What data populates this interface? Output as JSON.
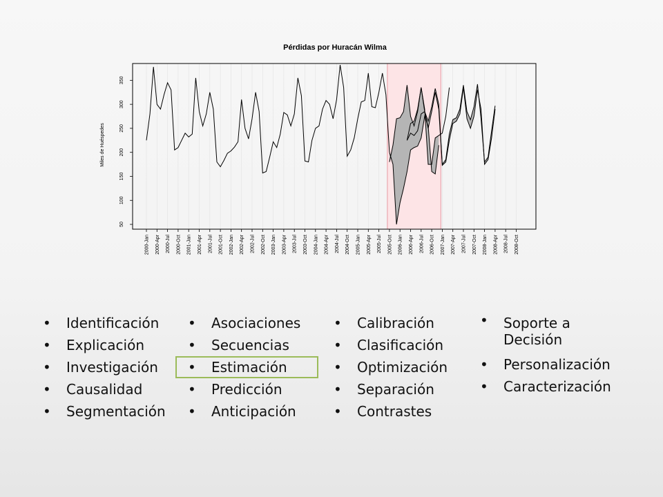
{
  "chart_data": {
    "type": "line",
    "title": "Pérdidas por Huracán Wilma",
    "ylabel": "Miles de Huéspedes",
    "xlabel": "",
    "ylim": [
      40,
      385
    ],
    "yticks": [
      50,
      100,
      150,
      200,
      250,
      300,
      350
    ],
    "xtick_labels": [
      "2000-Jan",
      "2000-Apr",
      "2000-Jul",
      "2000-Oct",
      "2001-Jan",
      "2001-Apr",
      "2001-Jul",
      "2001-Oct",
      "2002-Jan",
      "2002-Apr",
      "2002-Jul",
      "2002-Oct",
      "2003-Jan",
      "2003-Apr",
      "2003-Jul",
      "2003-Oct",
      "2004-Jan",
      "2004-Apr",
      "2004-Jul",
      "2004-Oct",
      "2005-Jan",
      "2005-Apr",
      "2005-Jul",
      "2005-Oct",
      "2006-Jan",
      "2006-Apr",
      "2006-Jul",
      "2006-Oct",
      "2007-Jan",
      "2007-Apr",
      "2007-Jul",
      "2007-Oct",
      "2008-Jan",
      "2008-Apr",
      "2008-Jul",
      "2008-Oct"
    ],
    "x_start": "2000-Jan",
    "highlight_range": [
      "2005-Oct",
      "2006-Dec"
    ],
    "highlight_color": "#fde4e6",
    "loss_fill_color": "#b5b5b5",
    "series": [
      {
        "values": [
          225,
          280,
          378,
          300,
          290,
          320,
          345,
          330,
          205,
          210,
          225,
          240,
          232,
          238,
          355,
          285,
          255,
          280,
          325,
          290,
          180,
          170,
          183,
          198,
          203,
          211,
          222,
          310,
          250,
          228,
          270,
          325,
          285,
          157,
          160,
          190,
          222,
          210,
          238,
          283,
          278,
          255,
          280,
          355,
          318,
          182,
          180,
          225,
          250,
          255,
          290,
          308,
          300,
          270,
          310,
          382,
          335,
          192,
          205,
          230,
          270,
          305,
          308,
          365,
          295,
          293,
          325,
          365,
          320,
          200
        ]
      },
      {
        "values": [
          180,
          215,
          270,
          272,
          285,
          340,
          275,
          255,
          285,
          335,
          290,
          175,
          175,
          230,
          235,
          240,
          275,
          335
        ]
      },
      {
        "values": [
          200,
          175,
          50,
          95,
          125,
          160,
          205,
          210,
          213,
          230,
          275,
          255,
          160,
          155,
          215
        ]
      },
      {
        "values": [
          225,
          260,
          265,
          290,
          335,
          285,
          265,
          295,
          333,
          300,
          175,
          185,
          238,
          268,
          272,
          290,
          340,
          285,
          268,
          295,
          342,
          270,
          180,
          190,
          245,
          297
        ]
      },
      {
        "values": [
          225,
          240,
          235,
          245,
          280,
          285,
          250,
          285,
          325,
          290,
          173,
          180,
          225,
          260,
          265,
          280,
          335,
          270,
          250,
          275,
          330,
          290,
          175,
          185,
          230,
          290
        ]
      }
    ]
  },
  "bullets": {
    "col1": [
      "Identificación",
      "Explicación",
      "Investigación",
      "Causalidad",
      "Segmentación"
    ],
    "col2": [
      "Asociaciones",
      "Secuencias",
      "Estimación",
      "Predicción",
      "Anticipación"
    ],
    "col3": [
      "Calibración",
      "Clasificación",
      "Optimización",
      "Separación",
      "Contrastes"
    ],
    "col4": [
      "Soporte a Decisión",
      "Personalización",
      "Caracterización"
    ]
  }
}
